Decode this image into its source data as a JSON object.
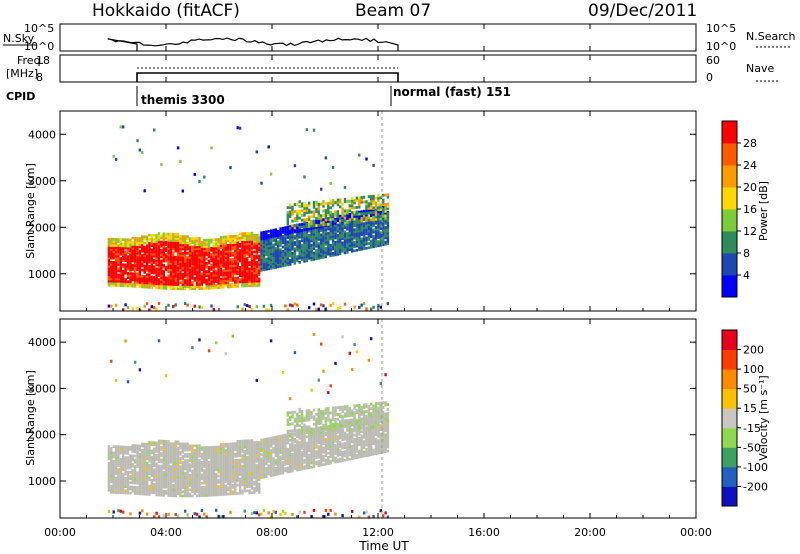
{
  "header": {
    "station": "Hokkaido (fitACF)",
    "beam": "Beam 07",
    "date": "09/Dec/2011"
  },
  "top_panels": {
    "nsky_label": "N.Sky",
    "nsky_ticks": [
      "10^5",
      "10^0"
    ],
    "freq_label_1": "Freq.",
    "freq_label_2": "[MHz]",
    "freq_ticks": [
      "18",
      "8"
    ],
    "nsearch_label": "N.Search",
    "nsearch_ticks": [
      "10^5",
      "10^0"
    ],
    "nave_label": "Nave",
    "nave_ticks": [
      "60",
      "0"
    ],
    "cpid_label": "CPID",
    "cpid_segments": [
      {
        "start_hour": 1.8,
        "label": "themis 3300"
      },
      {
        "start_hour": 12.0,
        "label": "normal (fast) 151"
      }
    ]
  },
  "colors": {
    "grey_scatter": "#bdbcb4",
    "power_scale": [
      "#0000ff",
      "#1f47b4",
      "#2f8c5a",
      "#7ccc3a",
      "#ffd800",
      "#ff9a00",
      "#ff5a00",
      "#ff0000"
    ],
    "velocity_scale": [
      "#e8001c",
      "#ff3c00",
      "#ff8a00",
      "#ffc000",
      "#c8c8c0",
      "#90d850",
      "#40a060",
      "#2060c0",
      "#1010c0"
    ]
  },
  "chart_data": [
    {
      "type": "heatmap",
      "name": "power",
      "ylabel": "Slant Range [km]",
      "xlim": [
        0,
        24
      ],
      "ylim": [
        200,
        4500
      ],
      "y_ticks": [
        1000,
        2000,
        3000,
        4000
      ],
      "colorbar": {
        "label": "Power [dB]",
        "ticks": [
          "28",
          "24",
          "20",
          "16",
          "12",
          "8",
          "4"
        ],
        "range": [
          0,
          32
        ]
      },
      "data_extent_hours": [
        1.8,
        12.4
      ],
      "dominant_value_dB": 28
    },
    {
      "type": "heatmap",
      "name": "velocity",
      "ylabel": "Slant Range [km]",
      "xlabel": "Time UT",
      "xlim": [
        0,
        24
      ],
      "ylim": [
        200,
        4500
      ],
      "y_ticks": [
        1000,
        2000,
        3000,
        4000
      ],
      "x_tick_labels": [
        "00:00",
        "04:00",
        "08:00",
        "12:00",
        "16:00",
        "20:00",
        "00:00"
      ],
      "colorbar": {
        "label": "Velocity [m s⁻¹]",
        "ticks": [
          "200",
          "100",
          "50",
          "15",
          "-15",
          "-50",
          "-100",
          "-200"
        ]
      },
      "data_extent_hours": [
        1.8,
        12.4
      ],
      "dominant_value_mps": "-15 to 15"
    }
  ]
}
